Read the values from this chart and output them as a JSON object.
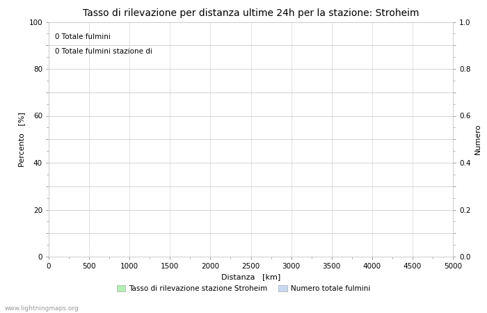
{
  "title": "Tasso di rilevazione per distanza ultime 24h per la stazione: Stroheim",
  "xlabel": "Distanza   [km]",
  "ylabel_left": "Percento   [%]",
  "ylabel_right": "Numero",
  "xlim": [
    0,
    5000
  ],
  "ylim_left": [
    0,
    100
  ],
  "ylim_right": [
    0,
    1.0
  ],
  "xticks": [
    0,
    500,
    1000,
    1500,
    2000,
    2500,
    3000,
    3500,
    4000,
    4500,
    5000
  ],
  "yticks_left": [
    0,
    10,
    20,
    30,
    40,
    50,
    60,
    70,
    80,
    90,
    100
  ],
  "yticks_right": [
    0.0,
    0.1,
    0.2,
    0.3,
    0.4,
    0.5,
    0.6,
    0.7,
    0.8,
    0.9,
    1.0
  ],
  "ytick_labels_left": [
    "0",
    "",
    "20",
    "",
    "40",
    "",
    "60",
    "",
    "80",
    "",
    "100"
  ],
  "ytick_labels_right": [
    "0.0",
    "",
    "0.2",
    "",
    "0.4",
    "",
    "0.6",
    "",
    "0.8",
    "",
    "1.0"
  ],
  "annotation_line1": "0 Totale fulmini",
  "annotation_line2": "0 Totale fulmini stazione di",
  "legend_label1": "Tasso di rilevazione stazione Stroheim",
  "legend_label2": "Numero totale fulmini",
  "legend_color1": "#b2f0b2",
  "legend_color2": "#c8d8f0",
  "watermark": "www.lightningmaps.org",
  "grid_color": "#cccccc",
  "bg_color": "#ffffff",
  "title_fontsize": 10,
  "axis_fontsize": 8,
  "tick_fontsize": 7.5,
  "annotation_fontsize": 7.5,
  "watermark_fontsize": 6.5,
  "legend_fontsize": 7.5
}
